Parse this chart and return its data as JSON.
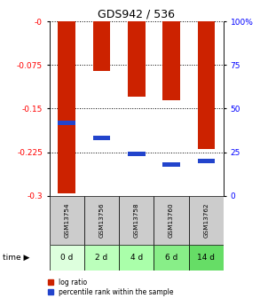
{
  "title": "GDS942 / 536",
  "samples": [
    "GSM13754",
    "GSM13756",
    "GSM13758",
    "GSM13760",
    "GSM13762"
  ],
  "time_labels": [
    "0 d",
    "2 d",
    "4 d",
    "6 d",
    "14 d"
  ],
  "log_ratios": [
    -0.295,
    -0.085,
    -0.13,
    -0.135,
    -0.22
  ],
  "percentile_ranks": [
    0.42,
    0.33,
    0.24,
    0.18,
    0.2
  ],
  "bar_color": "#cc2200",
  "blue_color": "#2244cc",
  "ylim": [
    -0.3,
    0.0
  ],
  "y_ticks": [
    0.0,
    -0.075,
    -0.15,
    -0.225,
    -0.3
  ],
  "y_tick_labels": [
    "-0",
    "-0.075",
    "-0.15",
    "-0.225",
    "-0.3"
  ],
  "right_y_ticks": [
    0.0,
    0.25,
    0.5,
    0.75,
    1.0
  ],
  "right_y_tick_labels": [
    "0",
    "25",
    "50",
    "75",
    "100%"
  ],
  "bar_width": 0.5,
  "sample_row_color": "#cccccc",
  "time_row_colors": [
    "#ddffdd",
    "#bbffbb",
    "#aaffaa",
    "#88ee88",
    "#66dd66"
  ],
  "legend_log_ratio": "log ratio",
  "legend_percentile": "percentile rank within the sample",
  "background_color": "#ffffff",
  "time_arrow": "▶"
}
